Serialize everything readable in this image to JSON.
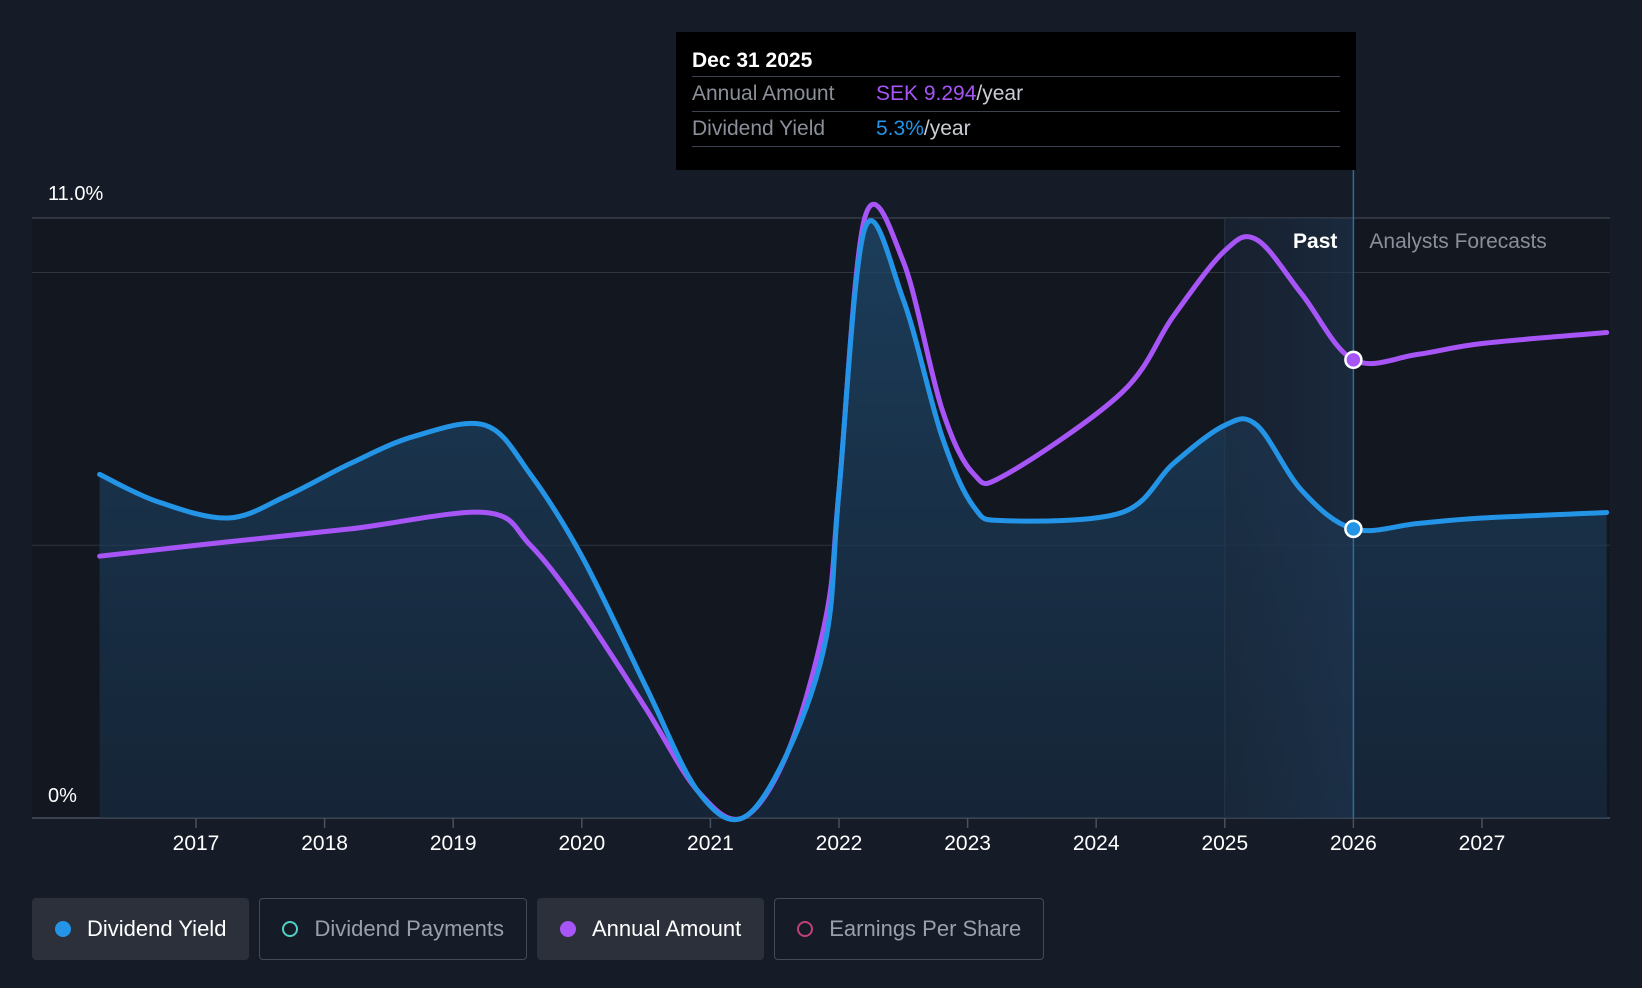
{
  "tooltip": {
    "date": "Dec 31 2025",
    "rows": [
      {
        "label": "Annual Amount",
        "value": "SEK 9.294",
        "unit": "/year",
        "color": "#a855f7"
      },
      {
        "label": "Dividend Yield",
        "value": "5.3%",
        "unit": "/year",
        "color": "#2394e6"
      }
    ]
  },
  "legend": [
    {
      "label": "Dividend Yield",
      "active": true,
      "color": "#2394e6",
      "marker": "filled"
    },
    {
      "label": "Dividend Payments",
      "active": false,
      "color": "#4fd1c5",
      "marker": "hollow"
    },
    {
      "label": "Annual Amount",
      "active": true,
      "color": "#a855f7",
      "marker": "filled"
    },
    {
      "label": "Earnings Per Share",
      "active": false,
      "color": "#c0407a",
      "marker": "hollow"
    }
  ],
  "chart_data": {
    "type": "line",
    "y_axis_labels": [
      "11.0%",
      "0%"
    ],
    "ylim": [
      0,
      11
    ],
    "x_ticks": [
      "2017",
      "2018",
      "2019",
      "2020",
      "2021",
      "2022",
      "2023",
      "2024",
      "2025",
      "2026",
      "2027"
    ],
    "past_label": "Past",
    "forecast_label": "Analysts Forecasts",
    "past_boundary": 2026.0,
    "series": [
      {
        "name": "Dividend Yield",
        "color": "#2394e6",
        "points": [
          [
            2016.25,
            6.3
          ],
          [
            2016.7,
            5.8
          ],
          [
            2017.25,
            5.5
          ],
          [
            2017.7,
            5.9
          ],
          [
            2018.2,
            6.5
          ],
          [
            2018.7,
            7.0
          ],
          [
            2019.25,
            7.2
          ],
          [
            2019.6,
            6.3
          ],
          [
            2020.0,
            4.8
          ],
          [
            2020.5,
            2.4
          ],
          [
            2020.9,
            0.5
          ],
          [
            2021.25,
            0.0
          ],
          [
            2021.6,
            1.2
          ],
          [
            2021.9,
            3.3
          ],
          [
            2022.0,
            6.0
          ],
          [
            2022.2,
            10.8
          ],
          [
            2022.5,
            9.5
          ],
          [
            2022.8,
            7.0
          ],
          [
            2023.05,
            5.7
          ],
          [
            2023.3,
            5.45
          ],
          [
            2024.2,
            5.6
          ],
          [
            2024.6,
            6.5
          ],
          [
            2025.0,
            7.2
          ],
          [
            2025.25,
            7.2
          ],
          [
            2025.6,
            6.0
          ],
          [
            2026.0,
            5.3
          ],
          [
            2026.5,
            5.4
          ],
          [
            2027.0,
            5.5
          ],
          [
            2027.97,
            5.6
          ]
        ]
      },
      {
        "name": "Annual Amount",
        "color": "#a855f7",
        "points": [
          [
            2016.25,
            4.8
          ],
          [
            2017.2,
            5.05
          ],
          [
            2018.2,
            5.3
          ],
          [
            2019.25,
            5.6
          ],
          [
            2019.6,
            5.0
          ],
          [
            2020.0,
            3.8
          ],
          [
            2020.5,
            2.0
          ],
          [
            2020.9,
            0.5
          ],
          [
            2021.25,
            0.0
          ],
          [
            2021.6,
            1.2
          ],
          [
            2021.9,
            3.7
          ],
          [
            2022.0,
            6.0
          ],
          [
            2022.2,
            11.0
          ],
          [
            2022.5,
            10.2
          ],
          [
            2022.8,
            7.5
          ],
          [
            2023.05,
            6.3
          ],
          [
            2023.3,
            6.3
          ],
          [
            2024.2,
            7.8
          ],
          [
            2024.6,
            9.2
          ],
          [
            2025.0,
            10.4
          ],
          [
            2025.25,
            10.6
          ],
          [
            2025.6,
            9.6
          ],
          [
            2026.0,
            8.4
          ],
          [
            2026.5,
            8.5
          ],
          [
            2027.0,
            8.7
          ],
          [
            2027.97,
            8.9
          ]
        ]
      }
    ],
    "highlight": [
      {
        "series": "Annual Amount",
        "x": 2026.0,
        "y": 8.4
      },
      {
        "series": "Dividend Yield",
        "x": 2026.0,
        "y": 5.3
      }
    ],
    "grid": true
  }
}
